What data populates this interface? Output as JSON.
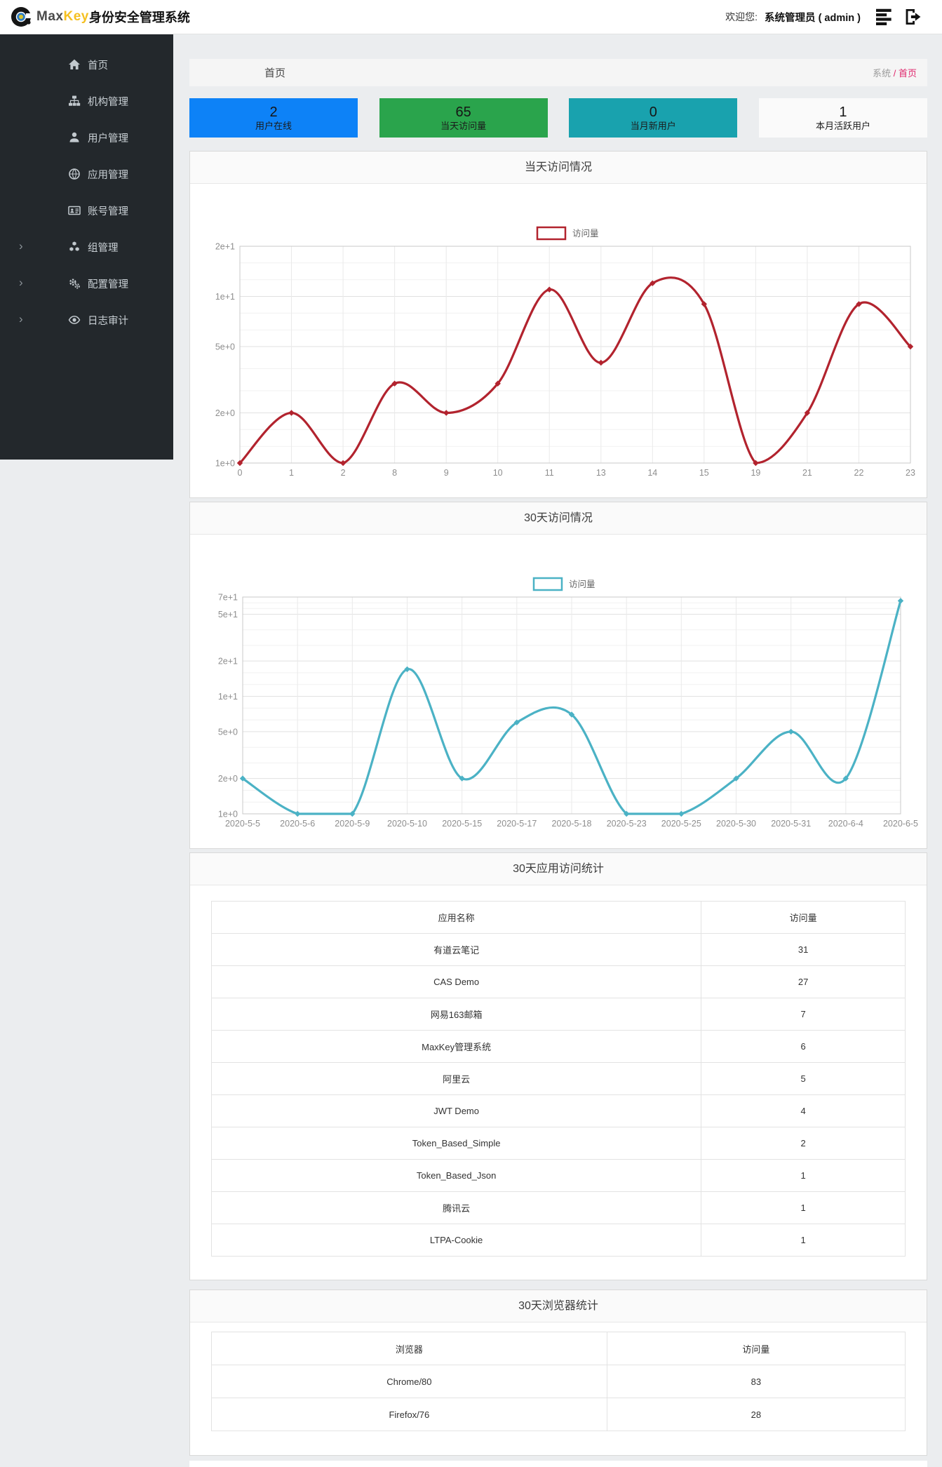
{
  "header": {
    "brand": {
      "max": "Max",
      "key": "Key",
      "suffix": "身份安全管理系统"
    },
    "welcome_label": "欢迎您:",
    "user": "系统管理员 ( admin )"
  },
  "sidebar": {
    "items": [
      {
        "label": "首页",
        "icon": "home-icon",
        "expandable": false
      },
      {
        "label": "机构管理",
        "icon": "sitemap-icon",
        "expandable": false
      },
      {
        "label": "用户管理",
        "icon": "user-icon",
        "expandable": false
      },
      {
        "label": "应用管理",
        "icon": "globe-icon",
        "expandable": false
      },
      {
        "label": "账号管理",
        "icon": "id-card-icon",
        "expandable": false
      },
      {
        "label": "组管理",
        "icon": "cubes-icon",
        "expandable": true
      },
      {
        "label": "配置管理",
        "icon": "gears-icon",
        "expandable": true
      },
      {
        "label": "日志审计",
        "icon": "eye-icon",
        "expandable": true
      }
    ]
  },
  "breadcrumb": {
    "title": "首页",
    "root": "系统",
    "separator": "/",
    "current": "首页"
  },
  "stats": [
    {
      "value": "2",
      "label": "用户在线",
      "color": "#0d82f7"
    },
    {
      "value": "65",
      "label": "当天访问量",
      "color": "#2aa44c"
    },
    {
      "value": "0",
      "label": "当月新用户",
      "color": "#19a2ae"
    },
    {
      "value": "1",
      "label": "本月活跃用户",
      "color": "#fafafa"
    }
  ],
  "panels": {
    "today": {
      "title": "当天访问情况"
    },
    "month": {
      "title": "30天访问情况"
    },
    "apps": {
      "title": "30天应用访问统计"
    },
    "browsers": {
      "title": "30天浏览器统计"
    }
  },
  "chart_data": [
    {
      "type": "line",
      "title": "当天访问情况",
      "legend": "访问量",
      "color": "#b2232e",
      "x_labels": [
        "0",
        "1",
        "2",
        "8",
        "9",
        "10",
        "11",
        "13",
        "14",
        "15",
        "19",
        "21",
        "22",
        "23"
      ],
      "values": [
        1,
        2,
        1,
        3,
        2,
        3,
        11,
        4,
        12,
        9,
        1,
        2,
        9,
        5
      ],
      "yscale": "log",
      "ylim": [
        1,
        20
      ],
      "yticks": [
        {
          "label": "1e+0",
          "value": 1
        },
        {
          "label": "2e+0",
          "value": 2
        },
        {
          "label": "5e+0",
          "value": 5
        },
        {
          "label": "1e+1",
          "value": 10
        },
        {
          "label": "2e+1",
          "value": 20
        }
      ],
      "legend_position": "top-center",
      "grid": true
    },
    {
      "type": "line",
      "title": "30天访问情况",
      "legend": "访问量",
      "color": "#4bb2c5",
      "x_labels": [
        "2020-5-5",
        "2020-5-6",
        "2020-5-9",
        "2020-5-10",
        "2020-5-15",
        "2020-5-17",
        "2020-5-18",
        "2020-5-23",
        "2020-5-25",
        "2020-5-30",
        "2020-5-31",
        "2020-6-4",
        "2020-6-5"
      ],
      "values": [
        2,
        1,
        1,
        17,
        2,
        6,
        7,
        1,
        1,
        2,
        5,
        2,
        65
      ],
      "yscale": "log",
      "ylim": [
        1,
        70
      ],
      "yticks": [
        {
          "label": "1e+0",
          "value": 1
        },
        {
          "label": "2e+0",
          "value": 2
        },
        {
          "label": "5e+0",
          "value": 5
        },
        {
          "label": "1e+1",
          "value": 10
        },
        {
          "label": "2e+1",
          "value": 20
        },
        {
          "label": "5e+1",
          "value": 50
        },
        {
          "label": "7e+1",
          "value": 70
        }
      ],
      "legend_position": "top-center",
      "grid": true
    }
  ],
  "tables": {
    "apps": {
      "headers": [
        "应用名称",
        "访问量"
      ],
      "rows": [
        [
          "有道云笔记",
          "31"
        ],
        [
          "CAS Demo",
          "27"
        ],
        [
          "网易163邮箱",
          "7"
        ],
        [
          "MaxKey管理系统",
          "6"
        ],
        [
          "阿里云",
          "5"
        ],
        [
          "JWT Demo",
          "4"
        ],
        [
          "Token_Based_Simple",
          "2"
        ],
        [
          "Token_Based_Json",
          "1"
        ],
        [
          "腾讯云",
          "1"
        ],
        [
          "LTPA-Cookie",
          "1"
        ]
      ]
    },
    "browsers": {
      "headers": [
        "浏览器",
        "访问量"
      ],
      "rows": [
        [
          "Chrome/80",
          "83"
        ],
        [
          "Firefox/76",
          "28"
        ]
      ]
    }
  }
}
